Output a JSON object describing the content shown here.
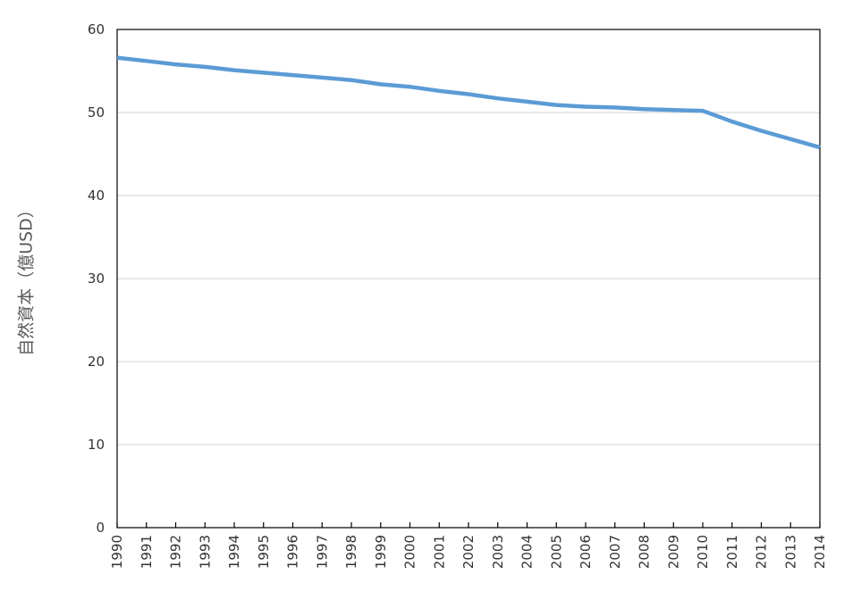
{
  "chart_data": {
    "type": "line",
    "title": "",
    "xlabel": "",
    "ylabel": "自然資本（億USD）",
    "ylim": [
      0,
      60
    ],
    "yticks": [
      0,
      10,
      20,
      30,
      40,
      50,
      60
    ],
    "grid": true,
    "legend": "none",
    "categories": [
      "1990",
      "1991",
      "1992",
      "1993",
      "1994",
      "1995",
      "1996",
      "1997",
      "1998",
      "1999",
      "2000",
      "2001",
      "2002",
      "2003",
      "2004",
      "2005",
      "2006",
      "2007",
      "2008",
      "2009",
      "2010",
      "2011",
      "2012",
      "2013",
      "2014"
    ],
    "series": [
      {
        "values": [
          56.6,
          56.2,
          55.8,
          55.5,
          55.1,
          54.8,
          54.5,
          54.2,
          53.9,
          53.4,
          53.1,
          52.6,
          52.2,
          51.7,
          51.3,
          50.9,
          50.7,
          50.6,
          50.4,
          50.3,
          50.2,
          48.9,
          47.8,
          46.8,
          45.8
        ],
        "color": "#5b9bd5"
      }
    ],
    "colors": {
      "line": "#5b9bd5",
      "grid": "#d9d9d9",
      "axis": "#000000",
      "frame": "#000000",
      "tick_text": "#333333",
      "axis_title": "#595959"
    }
  }
}
